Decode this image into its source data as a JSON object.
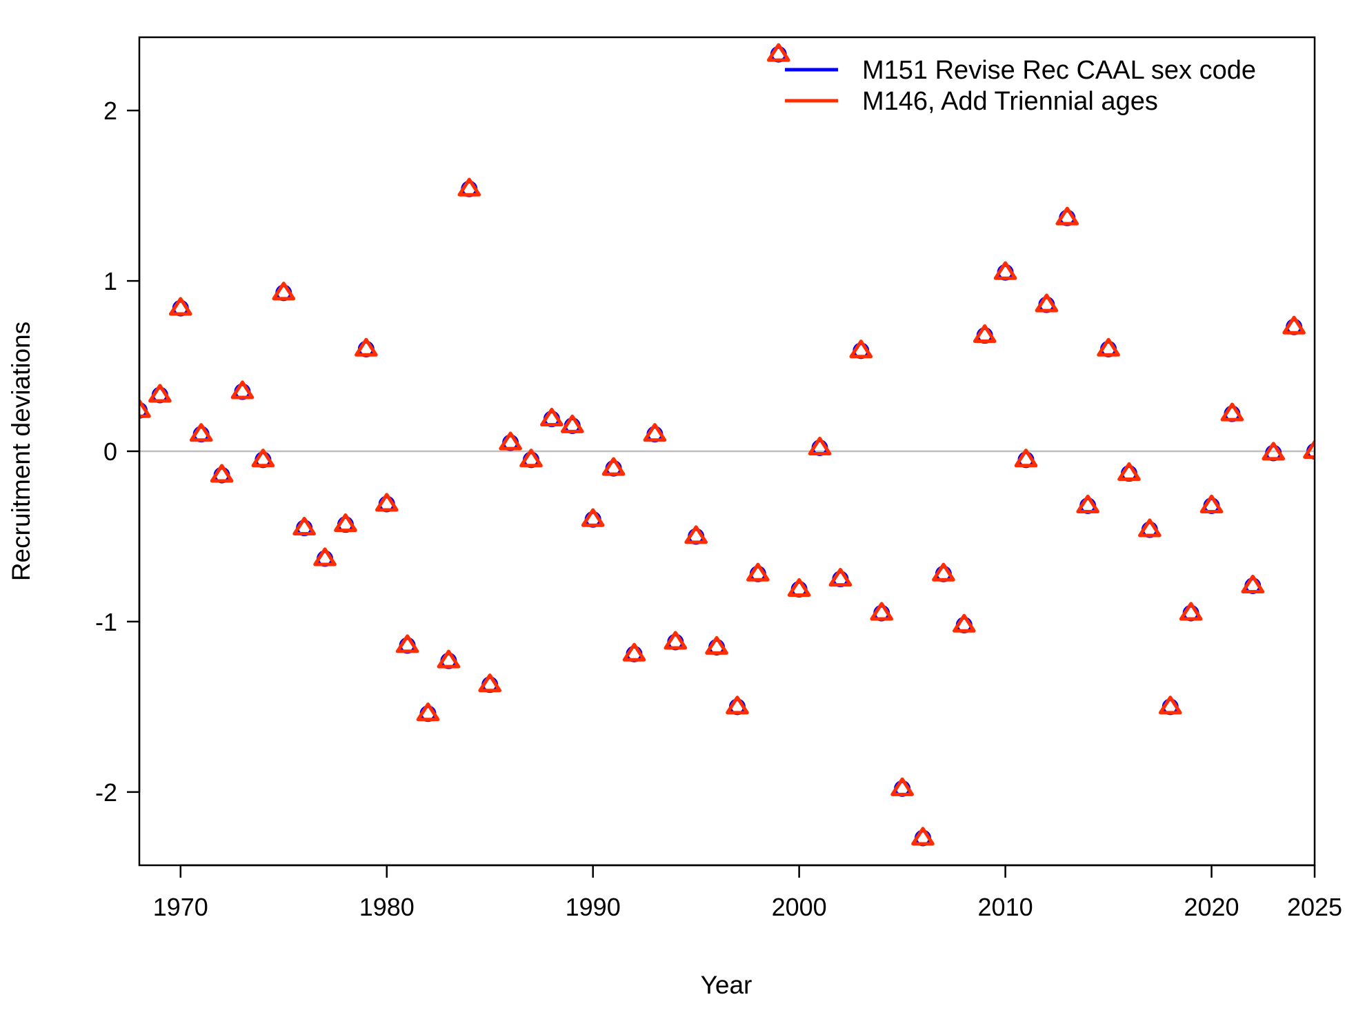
{
  "chart_data": {
    "type": "scatter",
    "xlabel": "Year",
    "ylabel": "Recruitment deviations",
    "xlim": [
      1968,
      2025
    ],
    "ylim": [
      -2.43,
      2.43
    ],
    "x_ticks": [
      1970,
      1980,
      1990,
      2000,
      2010,
      2020,
      2025
    ],
    "y_ticks": [
      -2,
      -1,
      0,
      1,
      2
    ],
    "y_tick_labels": [
      "-2",
      "-1",
      "0",
      "1",
      "2"
    ],
    "reference_line": {
      "y": 0,
      "color": "#bebebe"
    },
    "legend": {
      "position": "top-right"
    },
    "x": [
      1968,
      1969,
      1970,
      1971,
      1972,
      1973,
      1974,
      1975,
      1976,
      1977,
      1978,
      1979,
      1980,
      1981,
      1982,
      1983,
      1984,
      1985,
      1986,
      1987,
      1988,
      1989,
      1990,
      1991,
      1992,
      1993,
      1994,
      1995,
      1996,
      1997,
      1998,
      1999,
      2000,
      2001,
      2002,
      2003,
      2004,
      2005,
      2006,
      2007,
      2008,
      2009,
      2010,
      2011,
      2012,
      2013,
      2014,
      2015,
      2016,
      2017,
      2018,
      2019,
      2020,
      2021,
      2022,
      2023,
      2024,
      2025
    ],
    "series": [
      {
        "name": "M151 Revise Rec CAAL sex code",
        "color": "#0000ff",
        "marker": "open-circle",
        "values": [
          0.24,
          0.33,
          0.84,
          0.1,
          -0.14,
          0.35,
          -0.05,
          0.93,
          -0.45,
          -0.63,
          -0.43,
          0.6,
          -0.31,
          -1.14,
          -1.54,
          -1.23,
          1.54,
          -1.37,
          0.05,
          -0.05,
          0.19,
          0.15,
          -0.4,
          -0.1,
          -1.19,
          0.1,
          -1.12,
          -0.5,
          -1.15,
          -1.5,
          -0.72,
          2.33,
          -0.81,
          0.02,
          -0.75,
          0.59,
          -0.95,
          -1.98,
          -2.27,
          -0.72,
          -1.02,
          0.68,
          1.05,
          -0.05,
          0.86,
          1.37,
          -0.32,
          0.6,
          -0.13,
          -0.46,
          -1.5,
          -0.95,
          -0.32,
          0.22,
          -0.79,
          -0.01,
          0.73,
          0.0
        ]
      },
      {
        "name": "M146, Add Triennial ages",
        "color": "#ff2d00",
        "marker": "open-triangle",
        "values": [
          0.24,
          0.33,
          0.84,
          0.1,
          -0.14,
          0.35,
          -0.05,
          0.93,
          -0.45,
          -0.63,
          -0.43,
          0.6,
          -0.31,
          -1.14,
          -1.54,
          -1.23,
          1.54,
          -1.37,
          0.05,
          -0.05,
          0.19,
          0.15,
          -0.4,
          -0.1,
          -1.19,
          0.1,
          -1.12,
          -0.5,
          -1.15,
          -1.5,
          -0.72,
          2.33,
          -0.81,
          0.02,
          -0.75,
          0.59,
          -0.95,
          -1.98,
          -2.27,
          -0.72,
          -1.02,
          0.68,
          1.05,
          -0.05,
          0.86,
          1.37,
          -0.32,
          0.6,
          -0.13,
          -0.46,
          -1.5,
          -0.95,
          -0.32,
          0.22,
          -0.79,
          -0.01,
          0.73,
          0.0
        ]
      }
    ]
  }
}
